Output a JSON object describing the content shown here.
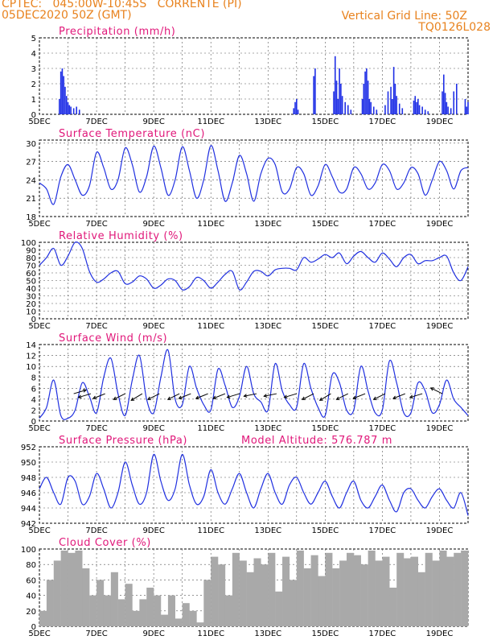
{
  "header": {
    "line1": "CPTEC:   045:00W-10:45S   CORRENTE (PI)",
    "line2": "05DEC2020 50Z (GMT)",
    "grid_note": "Vertical Grid Line: 50Z",
    "code": "TQ0126L028"
  },
  "colors": {
    "header": "#e8821e",
    "title": "#e0187a",
    "line": "#2030e0",
    "bar": "#1f2fe6",
    "cloud": "#a9a9a9",
    "grid": "#555555"
  },
  "chart_data": [
    {
      "type": "bar",
      "id": "precip",
      "title": "Precipitation (mm/h)",
      "x_ticks": [
        "5DEC",
        "7DEC",
        "9DEC",
        "11DEC",
        "13DEC",
        "15DEC",
        "17DEC",
        "19DEC"
      ],
      "x_range_days": [
        0,
        15
      ],
      "ylim": [
        0,
        5
      ],
      "yticks": [
        0,
        1,
        2,
        3,
        4,
        5
      ],
      "x": [
        0.7,
        0.75,
        0.8,
        0.85,
        0.9,
        0.95,
        1.0,
        1.05,
        1.1,
        1.2,
        1.3,
        1.4,
        8.9,
        8.95,
        9.0,
        9.05,
        9.6,
        9.65,
        10.3,
        10.35,
        10.4,
        10.45,
        10.5,
        10.55,
        10.6,
        10.7,
        10.8,
        10.9,
        11.3,
        11.35,
        11.4,
        11.45,
        11.5,
        11.55,
        11.6,
        11.7,
        11.8,
        12.1,
        12.2,
        12.3,
        12.35,
        12.4,
        12.45,
        12.5,
        12.6,
        12.7,
        13.1,
        13.15,
        13.2,
        13.25,
        13.3,
        13.4,
        13.5,
        13.6,
        14.1,
        14.15,
        14.2,
        14.25,
        14.3,
        14.4,
        14.5,
        14.6,
        14.9,
        14.95,
        15.0
      ],
      "values": [
        1.0,
        2.8,
        3.0,
        2.5,
        1.8,
        1.2,
        0.8,
        0.6,
        0.5,
        0.4,
        0.5,
        0.3,
        0.4,
        0.8,
        1.0,
        0.3,
        2.5,
        3.0,
        1.5,
        3.8,
        2.2,
        1.0,
        3.0,
        2.0,
        1.2,
        0.8,
        0.6,
        0.3,
        1.0,
        2.0,
        2.8,
        3.0,
        2.2,
        1.0,
        0.8,
        0.5,
        0.3,
        0.6,
        1.5,
        1.8,
        1.0,
        3.1,
        2.0,
        1.2,
        0.7,
        0.4,
        0.9,
        1.2,
        0.8,
        1.0,
        0.6,
        0.5,
        0.3,
        0.2,
        1.5,
        2.6,
        1.4,
        0.8,
        0.5,
        0.4,
        1.5,
        2.0,
        1.0,
        0.5,
        0.8
      ]
    },
    {
      "type": "line",
      "id": "temp",
      "title": "Surface Temperature (nC)",
      "x_ticks": [
        "5DEC",
        "7DEC",
        "9DEC",
        "11DEC",
        "13DEC",
        "15DEC",
        "17DEC",
        "19DEC"
      ],
      "ylim": [
        18,
        30.5
      ],
      "yticks": [
        18,
        21,
        24,
        27,
        30
      ],
      "x": [
        0,
        0.25,
        0.5,
        0.75,
        1,
        1.25,
        1.5,
        1.75,
        2,
        2.25,
        2.5,
        2.75,
        3,
        3.25,
        3.5,
        3.75,
        4,
        4.25,
        4.5,
        4.75,
        5,
        5.25,
        5.5,
        5.75,
        6,
        6.25,
        6.5,
        6.75,
        7,
        7.25,
        7.5,
        7.75,
        8,
        8.25,
        8.5,
        8.75,
        9,
        9.25,
        9.5,
        9.75,
        10,
        10.25,
        10.5,
        10.75,
        11,
        11.25,
        11.5,
        11.75,
        12,
        12.25,
        12.5,
        12.75,
        13,
        13.25,
        13.5,
        13.75,
        14,
        14.25,
        14.5,
        14.75,
        15
      ],
      "values": [
        23.5,
        22.5,
        20.0,
        24.5,
        26.5,
        24.0,
        21.5,
        23.0,
        28.5,
        26.0,
        22.5,
        24.0,
        29.2,
        26.5,
        22.0,
        24.5,
        29.5,
        26.0,
        21.5,
        24.0,
        29.4,
        25.5,
        21.0,
        24.0,
        29.6,
        25.5,
        20.5,
        23.5,
        28.0,
        25.0,
        20.5,
        25.0,
        27.5,
        26.5,
        22.0,
        22.5,
        26.0,
        25.0,
        21.5,
        23.0,
        26.5,
        24.5,
        22.0,
        22.5,
        26.0,
        25.0,
        22.5,
        23.5,
        26.5,
        25.5,
        22.5,
        23.5,
        26.0,
        25.0,
        21.5,
        24.0,
        27.0,
        25.5,
        22.5,
        25.5,
        26.0
      ]
    },
    {
      "type": "line",
      "id": "rh",
      "title": "Relative Humidity (%)",
      "x_ticks": [
        "5DEC",
        "7DEC",
        "9DEC",
        "11DEC",
        "13DEC",
        "15DEC",
        "17DEC",
        "19DEC"
      ],
      "ylim": [
        0,
        100
      ],
      "yticks": [
        0,
        10,
        20,
        30,
        40,
        50,
        60,
        70,
        80,
        90,
        100
      ],
      "x": [
        0,
        0.25,
        0.5,
        0.75,
        1,
        1.25,
        1.5,
        1.75,
        2,
        2.25,
        2.5,
        2.75,
        3,
        3.25,
        3.5,
        3.75,
        4,
        4.25,
        4.5,
        4.75,
        5,
        5.25,
        5.5,
        5.75,
        6,
        6.25,
        6.5,
        6.75,
        7,
        7.25,
        7.5,
        7.75,
        8,
        8.25,
        8.5,
        8.75,
        9,
        9.25,
        9.5,
        9.75,
        10,
        10.25,
        10.5,
        10.75,
        11,
        11.25,
        11.5,
        11.75,
        12,
        12.25,
        12.5,
        12.75,
        13,
        13.25,
        13.5,
        13.75,
        14,
        14.25,
        14.5,
        14.75,
        15
      ],
      "values": [
        70,
        80,
        92,
        70,
        82,
        100,
        92,
        62,
        48,
        52,
        60,
        62,
        46,
        48,
        56,
        52,
        40,
        44,
        52,
        50,
        38,
        42,
        54,
        50,
        40,
        48,
        58,
        62,
        38,
        48,
        62,
        62,
        56,
        64,
        66,
        66,
        64,
        80,
        74,
        78,
        84,
        80,
        86,
        72,
        82,
        88,
        80,
        74,
        86,
        78,
        68,
        80,
        84,
        72,
        76,
        76,
        80,
        82,
        60,
        50,
        68
      ]
    },
    {
      "type": "line",
      "id": "wind",
      "title": "Surface Wind (m/s)",
      "x_ticks": [
        "5DEC",
        "7DEC",
        "9DEC",
        "11DEC",
        "13DEC",
        "15DEC",
        "17DEC",
        "19DEC"
      ],
      "ylim": [
        0,
        14
      ],
      "yticks": [
        0,
        2,
        4,
        6,
        8,
        10,
        12,
        14
      ],
      "x": [
        0,
        0.25,
        0.5,
        0.75,
        1,
        1.25,
        1.5,
        1.75,
        2,
        2.25,
        2.5,
        2.75,
        3,
        3.25,
        3.5,
        3.75,
        4,
        4.25,
        4.5,
        4.75,
        5,
        5.25,
        5.5,
        5.75,
        6,
        6.25,
        6.5,
        6.75,
        7,
        7.25,
        7.5,
        7.75,
        8,
        8.25,
        8.5,
        8.75,
        9,
        9.25,
        9.5,
        9.75,
        10,
        10.25,
        10.5,
        10.75,
        11,
        11.25,
        11.5,
        11.75,
        12,
        12.25,
        12.5,
        12.75,
        13,
        13.25,
        13.5,
        13.75,
        14,
        14.25,
        14.5,
        14.75,
        15
      ],
      "values": [
        0.5,
        2.5,
        7.5,
        1.0,
        0.5,
        2.0,
        7.0,
        4.5,
        1.5,
        8.0,
        11.5,
        5.0,
        1.0,
        7.5,
        12.0,
        4.0,
        1.5,
        8.0,
        13.0,
        4.0,
        3.0,
        10.0,
        6.0,
        3.0,
        2.0,
        9.5,
        6.5,
        2.5,
        4.5,
        10.0,
        5.0,
        3.5,
        2.0,
        10.5,
        5.5,
        3.0,
        2.5,
        10.5,
        6.0,
        2.5,
        1.0,
        8.5,
        7.0,
        2.0,
        2.0,
        10.0,
        5.5,
        1.5,
        2.0,
        11.0,
        7.0,
        1.5,
        1.5,
        7.0,
        5.5,
        1.5,
        3.0,
        7.5,
        4.0,
        2.5,
        1.0
      ],
      "arrow_x": [
        1.2,
        1.8,
        2.3,
        3.0,
        3.6,
        4.2,
        4.9,
        5.3,
        5.9,
        6.5,
        7.0,
        7.6,
        8.3,
        9.0,
        9.6,
        10.2,
        10.8,
        11.4,
        12.1,
        12.8,
        13.4,
        14.1
      ],
      "arrow_u": [
        1,
        -1,
        -1,
        -1,
        -1,
        -1,
        -1,
        -1,
        -1,
        -1,
        -1,
        -1,
        -1,
        -1,
        -1,
        -1,
        -1,
        -1,
        -1,
        -1,
        -1,
        -1
      ],
      "arrow_v": [
        0.3,
        -0.3,
        -0.4,
        -0.5,
        -0.6,
        -0.5,
        -0.5,
        -0.4,
        -0.4,
        -0.4,
        -0.3,
        -0.2,
        -0.2,
        -0.3,
        -0.5,
        -0.6,
        -0.5,
        -0.4,
        -0.5,
        -0.4,
        -0.3,
        0.5
      ]
    },
    {
      "type": "line",
      "id": "press",
      "title": "Surface Pressure (hPa)",
      "note": "Model Altitude: 576.787 m",
      "x_ticks": [
        "5DEC",
        "7DEC",
        "9DEC",
        "11DEC",
        "13DEC",
        "15DEC",
        "17DEC",
        "19DEC"
      ],
      "ylim": [
        942,
        952
      ],
      "yticks": [
        942,
        944,
        946,
        948,
        950,
        952
      ],
      "x": [
        0,
        0.25,
        0.5,
        0.75,
        1,
        1.25,
        1.5,
        1.75,
        2,
        2.25,
        2.5,
        2.75,
        3,
        3.25,
        3.5,
        3.75,
        4,
        4.25,
        4.5,
        4.75,
        5,
        5.25,
        5.5,
        5.75,
        6,
        6.25,
        6.5,
        6.75,
        7,
        7.25,
        7.5,
        7.75,
        8,
        8.25,
        8.5,
        8.75,
        9,
        9.25,
        9.5,
        9.75,
        10,
        10.25,
        10.5,
        10.75,
        11,
        11.25,
        11.5,
        11.75,
        12,
        12.25,
        12.5,
        12.75,
        13,
        13.25,
        13.5,
        13.75,
        14,
        14.25,
        14.5,
        14.75,
        15
      ],
      "values": [
        946.5,
        948.0,
        946.0,
        944.5,
        948.0,
        947.5,
        944.5,
        945.5,
        948.5,
        946.5,
        944.0,
        946.0,
        950.0,
        947.0,
        944.5,
        946.0,
        951.0,
        947.5,
        945.0,
        946.5,
        951.0,
        947.0,
        944.5,
        945.5,
        949.0,
        946.0,
        944.5,
        946.5,
        948.5,
        946.0,
        944.0,
        946.5,
        948.5,
        946.0,
        944.5,
        947.0,
        948.0,
        946.0,
        944.5,
        946.0,
        947.5,
        945.5,
        944.0,
        946.0,
        947.5,
        945.0,
        944.0,
        945.5,
        947.0,
        945.0,
        943.5,
        946.0,
        946.5,
        945.0,
        944.0,
        945.5,
        946.5,
        945.0,
        944.0,
        946.0,
        943.0
      ]
    },
    {
      "type": "bar",
      "id": "cloud",
      "title": "Cloud Cover (%)",
      "x_ticks": [
        "5DEC",
        "7DEC",
        "9DEC",
        "11DEC",
        "13DEC",
        "15DEC",
        "17DEC",
        "19DEC"
      ],
      "ylim": [
        0,
        100
      ],
      "yticks": [
        0,
        20,
        40,
        60,
        80,
        100
      ],
      "x": [
        0,
        0.25,
        0.5,
        0.75,
        1,
        1.25,
        1.5,
        1.75,
        2,
        2.25,
        2.5,
        2.75,
        3,
        3.25,
        3.5,
        3.75,
        4,
        4.25,
        4.5,
        4.75,
        5,
        5.25,
        5.5,
        5.75,
        6,
        6.25,
        6.5,
        6.75,
        7,
        7.25,
        7.5,
        7.75,
        8,
        8.25,
        8.5,
        8.75,
        9,
        9.25,
        9.5,
        9.75,
        10,
        10.25,
        10.5,
        10.75,
        11,
        11.25,
        11.5,
        11.75,
        12,
        12.25,
        12.5,
        12.75,
        13,
        13.25,
        13.5,
        13.75,
        14,
        14.25,
        14.5,
        14.75
      ],
      "values": [
        20,
        60,
        85,
        98,
        95,
        98,
        75,
        40,
        60,
        40,
        70,
        35,
        55,
        20,
        35,
        50,
        40,
        15,
        40,
        10,
        30,
        20,
        5,
        60,
        90,
        80,
        40,
        95,
        85,
        70,
        88,
        80,
        95,
        45,
        90,
        60,
        98,
        75,
        92,
        65,
        95,
        75,
        85,
        95,
        92,
        80,
        98,
        85,
        90,
        50,
        95,
        88,
        90,
        70,
        95,
        85,
        98,
        90,
        95,
        98
      ]
    }
  ]
}
